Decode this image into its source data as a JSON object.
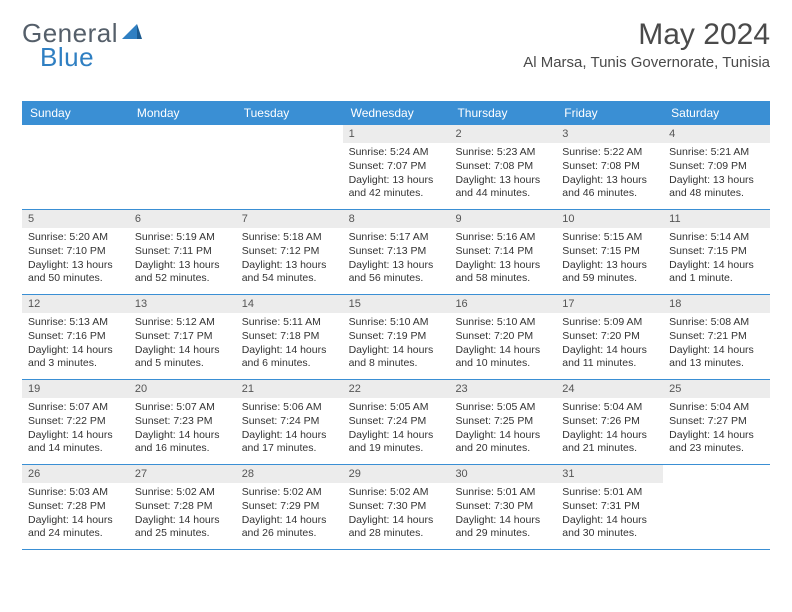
{
  "logo": {
    "textA": "General",
    "textB": "Blue"
  },
  "title": "May 2024",
  "location": "Al Marsa, Tunis Governorate, Tunisia",
  "colors": {
    "headerBg": "#3a8fd4",
    "headerText": "#ffffff",
    "dayBarBg": "#ececec",
    "rowBorder": "#3a8fd4",
    "logoGrey": "#555f6a",
    "logoBlue": "#2f7fc2"
  },
  "dayNames": [
    "Sunday",
    "Monday",
    "Tuesday",
    "Wednesday",
    "Thursday",
    "Friday",
    "Saturday"
  ],
  "weeks": [
    [
      null,
      null,
      null,
      {
        "n": "1",
        "sr": "Sunrise: 5:24 AM",
        "ss": "Sunset: 7:07 PM",
        "dl": "Daylight: 13 hours and 42 minutes."
      },
      {
        "n": "2",
        "sr": "Sunrise: 5:23 AM",
        "ss": "Sunset: 7:08 PM",
        "dl": "Daylight: 13 hours and 44 minutes."
      },
      {
        "n": "3",
        "sr": "Sunrise: 5:22 AM",
        "ss": "Sunset: 7:08 PM",
        "dl": "Daylight: 13 hours and 46 minutes."
      },
      {
        "n": "4",
        "sr": "Sunrise: 5:21 AM",
        "ss": "Sunset: 7:09 PM",
        "dl": "Daylight: 13 hours and 48 minutes."
      }
    ],
    [
      {
        "n": "5",
        "sr": "Sunrise: 5:20 AM",
        "ss": "Sunset: 7:10 PM",
        "dl": "Daylight: 13 hours and 50 minutes."
      },
      {
        "n": "6",
        "sr": "Sunrise: 5:19 AM",
        "ss": "Sunset: 7:11 PM",
        "dl": "Daylight: 13 hours and 52 minutes."
      },
      {
        "n": "7",
        "sr": "Sunrise: 5:18 AM",
        "ss": "Sunset: 7:12 PM",
        "dl": "Daylight: 13 hours and 54 minutes."
      },
      {
        "n": "8",
        "sr": "Sunrise: 5:17 AM",
        "ss": "Sunset: 7:13 PM",
        "dl": "Daylight: 13 hours and 56 minutes."
      },
      {
        "n": "9",
        "sr": "Sunrise: 5:16 AM",
        "ss": "Sunset: 7:14 PM",
        "dl": "Daylight: 13 hours and 58 minutes."
      },
      {
        "n": "10",
        "sr": "Sunrise: 5:15 AM",
        "ss": "Sunset: 7:15 PM",
        "dl": "Daylight: 13 hours and 59 minutes."
      },
      {
        "n": "11",
        "sr": "Sunrise: 5:14 AM",
        "ss": "Sunset: 7:15 PM",
        "dl": "Daylight: 14 hours and 1 minute."
      }
    ],
    [
      {
        "n": "12",
        "sr": "Sunrise: 5:13 AM",
        "ss": "Sunset: 7:16 PM",
        "dl": "Daylight: 14 hours and 3 minutes."
      },
      {
        "n": "13",
        "sr": "Sunrise: 5:12 AM",
        "ss": "Sunset: 7:17 PM",
        "dl": "Daylight: 14 hours and 5 minutes."
      },
      {
        "n": "14",
        "sr": "Sunrise: 5:11 AM",
        "ss": "Sunset: 7:18 PM",
        "dl": "Daylight: 14 hours and 6 minutes."
      },
      {
        "n": "15",
        "sr": "Sunrise: 5:10 AM",
        "ss": "Sunset: 7:19 PM",
        "dl": "Daylight: 14 hours and 8 minutes."
      },
      {
        "n": "16",
        "sr": "Sunrise: 5:10 AM",
        "ss": "Sunset: 7:20 PM",
        "dl": "Daylight: 14 hours and 10 minutes."
      },
      {
        "n": "17",
        "sr": "Sunrise: 5:09 AM",
        "ss": "Sunset: 7:20 PM",
        "dl": "Daylight: 14 hours and 11 minutes."
      },
      {
        "n": "18",
        "sr": "Sunrise: 5:08 AM",
        "ss": "Sunset: 7:21 PM",
        "dl": "Daylight: 14 hours and 13 minutes."
      }
    ],
    [
      {
        "n": "19",
        "sr": "Sunrise: 5:07 AM",
        "ss": "Sunset: 7:22 PM",
        "dl": "Daylight: 14 hours and 14 minutes."
      },
      {
        "n": "20",
        "sr": "Sunrise: 5:07 AM",
        "ss": "Sunset: 7:23 PM",
        "dl": "Daylight: 14 hours and 16 minutes."
      },
      {
        "n": "21",
        "sr": "Sunrise: 5:06 AM",
        "ss": "Sunset: 7:24 PM",
        "dl": "Daylight: 14 hours and 17 minutes."
      },
      {
        "n": "22",
        "sr": "Sunrise: 5:05 AM",
        "ss": "Sunset: 7:24 PM",
        "dl": "Daylight: 14 hours and 19 minutes."
      },
      {
        "n": "23",
        "sr": "Sunrise: 5:05 AM",
        "ss": "Sunset: 7:25 PM",
        "dl": "Daylight: 14 hours and 20 minutes."
      },
      {
        "n": "24",
        "sr": "Sunrise: 5:04 AM",
        "ss": "Sunset: 7:26 PM",
        "dl": "Daylight: 14 hours and 21 minutes."
      },
      {
        "n": "25",
        "sr": "Sunrise: 5:04 AM",
        "ss": "Sunset: 7:27 PM",
        "dl": "Daylight: 14 hours and 23 minutes."
      }
    ],
    [
      {
        "n": "26",
        "sr": "Sunrise: 5:03 AM",
        "ss": "Sunset: 7:28 PM",
        "dl": "Daylight: 14 hours and 24 minutes."
      },
      {
        "n": "27",
        "sr": "Sunrise: 5:02 AM",
        "ss": "Sunset: 7:28 PM",
        "dl": "Daylight: 14 hours and 25 minutes."
      },
      {
        "n": "28",
        "sr": "Sunrise: 5:02 AM",
        "ss": "Sunset: 7:29 PM",
        "dl": "Daylight: 14 hours and 26 minutes."
      },
      {
        "n": "29",
        "sr": "Sunrise: 5:02 AM",
        "ss": "Sunset: 7:30 PM",
        "dl": "Daylight: 14 hours and 28 minutes."
      },
      {
        "n": "30",
        "sr": "Sunrise: 5:01 AM",
        "ss": "Sunset: 7:30 PM",
        "dl": "Daylight: 14 hours and 29 minutes."
      },
      {
        "n": "31",
        "sr": "Sunrise: 5:01 AM",
        "ss": "Sunset: 7:31 PM",
        "dl": "Daylight: 14 hours and 30 minutes."
      },
      null
    ]
  ]
}
